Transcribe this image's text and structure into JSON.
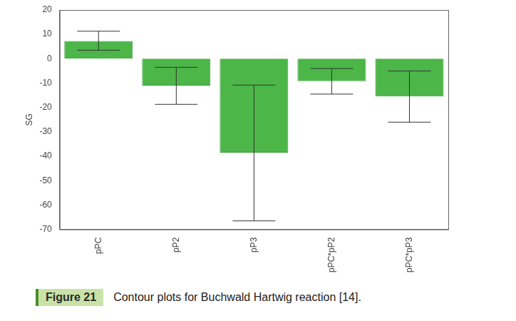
{
  "chart_data": {
    "type": "bar",
    "y_label": "SG",
    "categories": [
      "pPC",
      "pP2",
      "pP3",
      "pPC*pP2",
      "pPC*pP3"
    ],
    "values": [
      7.3,
      -11,
      -38.5,
      -9.2,
      -15.5
    ],
    "error_low": [
      3.5,
      -18.7,
      -66.5,
      -14.5,
      -26
    ],
    "error_high": [
      11.3,
      -3.5,
      -10.8,
      -4,
      -5
    ],
    "color": "#4cb648",
    "ylim": [
      -70,
      20
    ],
    "yticks": [
      -70,
      -60,
      -50,
      -40,
      -30,
      -20,
      -10,
      0,
      10,
      20
    ],
    "grid": false
  },
  "caption": {
    "label": "Figure 21",
    "text": "Contour plots for Buchwald Hartwig reaction [14]."
  }
}
